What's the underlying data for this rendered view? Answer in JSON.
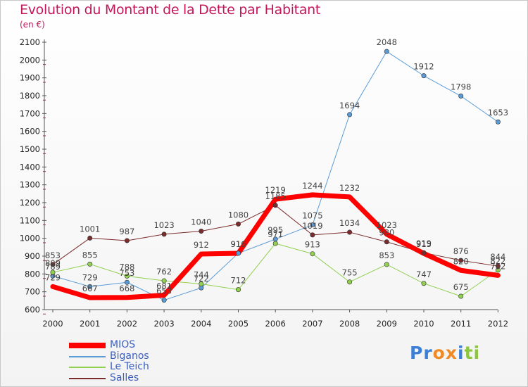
{
  "chart_data": {
    "type": "line",
    "title": "Evolution du Montant de la Dette par Habitant",
    "subtitle": "(en €)",
    "x": [
      "2000",
      "2001",
      "2002",
      "2003",
      "2004",
      "2005",
      "2006",
      "2007",
      "2008",
      "2009",
      "2010",
      "2011",
      "2012"
    ],
    "y_ticks": [
      "600",
      "700",
      "800",
      "900",
      "1000",
      "1100",
      "1200",
      "1300",
      "1400",
      "1500",
      "1600",
      "1700",
      "1800",
      "1900",
      "2000",
      "2100"
    ],
    "ylim": [
      600,
      2100
    ],
    "grid": false,
    "legend": "bottom-left",
    "series": [
      {
        "name": "MIOS",
        "color": "#ff0000",
        "width": 7,
        "values": [
          729,
          667,
          668,
          681,
          912,
          916,
          1219,
          1244,
          1232,
          1023,
          915,
          820,
          792
        ],
        "labels": [
          "729",
          "667",
          "668",
          "681",
          "912",
          "916",
          "1219",
          "1244",
          "1232",
          "1023",
          "915",
          "820",
          "792"
        ]
      },
      {
        "name": "Biganos",
        "color": "#5b9bd5",
        "width": 1,
        "values": [
          789,
          729,
          753,
          653,
          722,
          916,
          995,
          1075,
          1694,
          2048,
          1912,
          1798,
          1653
        ],
        "labels": [
          "789",
          "729",
          "753",
          "653",
          "722",
          "916",
          "995",
          "1075",
          "1694",
          "2048",
          "1912",
          "1798",
          "1653"
        ]
      },
      {
        "name": "Le Teich",
        "color": "#92d050",
        "width": 1,
        "values": [
          809,
          855,
          788,
          762,
          744,
          712,
          971,
          913,
          755,
          853,
          747,
          675,
          822
        ],
        "labels": [
          "809",
          "855",
          "788",
          "762",
          "744",
          "712",
          "971",
          "913",
          "755",
          "853",
          "747",
          "675",
          "822"
        ]
      },
      {
        "name": "Salles",
        "color": "#7b2c2c",
        "width": 1,
        "values": [
          853,
          1001,
          987,
          1023,
          1040,
          1080,
          1185,
          1019,
          1034,
          980,
          919,
          876,
          844
        ],
        "labels": [
          "853",
          "1001",
          "987",
          "1023",
          "1040",
          "1080",
          "1185",
          "1019",
          "1034",
          "980",
          "919",
          "876",
          "844"
        ]
      }
    ]
  },
  "logo": {
    "text": "Proxiti",
    "colors": [
      "#3d7fd6",
      "#3d7fd6",
      "#f08a24",
      "#f08a24",
      "#3d7fd6",
      "#8cc63f",
      "#8cc63f"
    ]
  }
}
